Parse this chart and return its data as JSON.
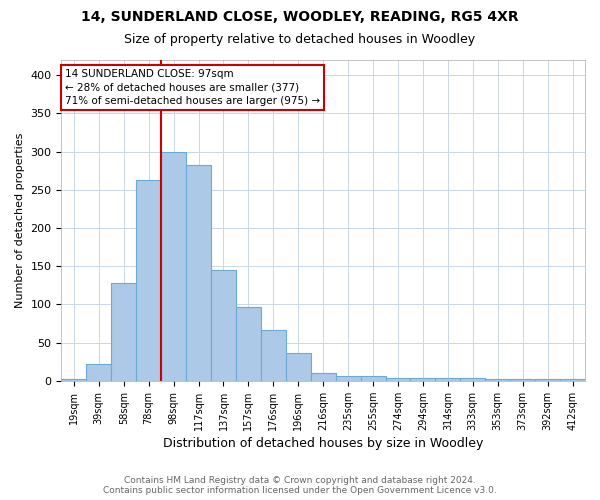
{
  "title1": "14, SUNDERLAND CLOSE, WOODLEY, READING, RG5 4XR",
  "title2": "Size of property relative to detached houses in Woodley",
  "xlabel": "Distribution of detached houses by size in Woodley",
  "ylabel": "Number of detached properties",
  "footnote": "Contains HM Land Registry data © Crown copyright and database right 2024.\nContains public sector information licensed under the Open Government Licence v3.0.",
  "categories": [
    "19sqm",
    "39sqm",
    "58sqm",
    "78sqm",
    "98sqm",
    "117sqm",
    "137sqm",
    "157sqm",
    "176sqm",
    "196sqm",
    "216sqm",
    "235sqm",
    "255sqm",
    "274sqm",
    "294sqm",
    "314sqm",
    "333sqm",
    "353sqm",
    "373sqm",
    "392sqm",
    "412sqm"
  ],
  "values": [
    2,
    22,
    128,
    263,
    300,
    283,
    145,
    97,
    67,
    36,
    10,
    6,
    6,
    4,
    4,
    4,
    4,
    3,
    3,
    2,
    2
  ],
  "bar_color": "#adc9e8",
  "bar_edge_color": "#6aaad4",
  "red_line_x": 3.5,
  "annotation_line1": "14 SUNDERLAND CLOSE: 97sqm",
  "annotation_line2": "← 28% of detached houses are smaller (377)",
  "annotation_line3": "71% of semi-detached houses are larger (975) →",
  "annotation_box_color": "#ffffff",
  "annotation_box_edge_color": "#cc0000",
  "ylim": [
    0,
    420
  ],
  "yticks": [
    0,
    50,
    100,
    150,
    200,
    250,
    300,
    350,
    400
  ],
  "background_color": "#ffffff",
  "grid_color": "#c8d8e8",
  "title1_fontsize": 10,
  "title2_fontsize": 9,
  "xlabel_fontsize": 9,
  "ylabel_fontsize": 8,
  "tick_fontsize": 8,
  "xtick_fontsize": 7,
  "footnote_fontsize": 6.5,
  "footnote_color": "#666666"
}
